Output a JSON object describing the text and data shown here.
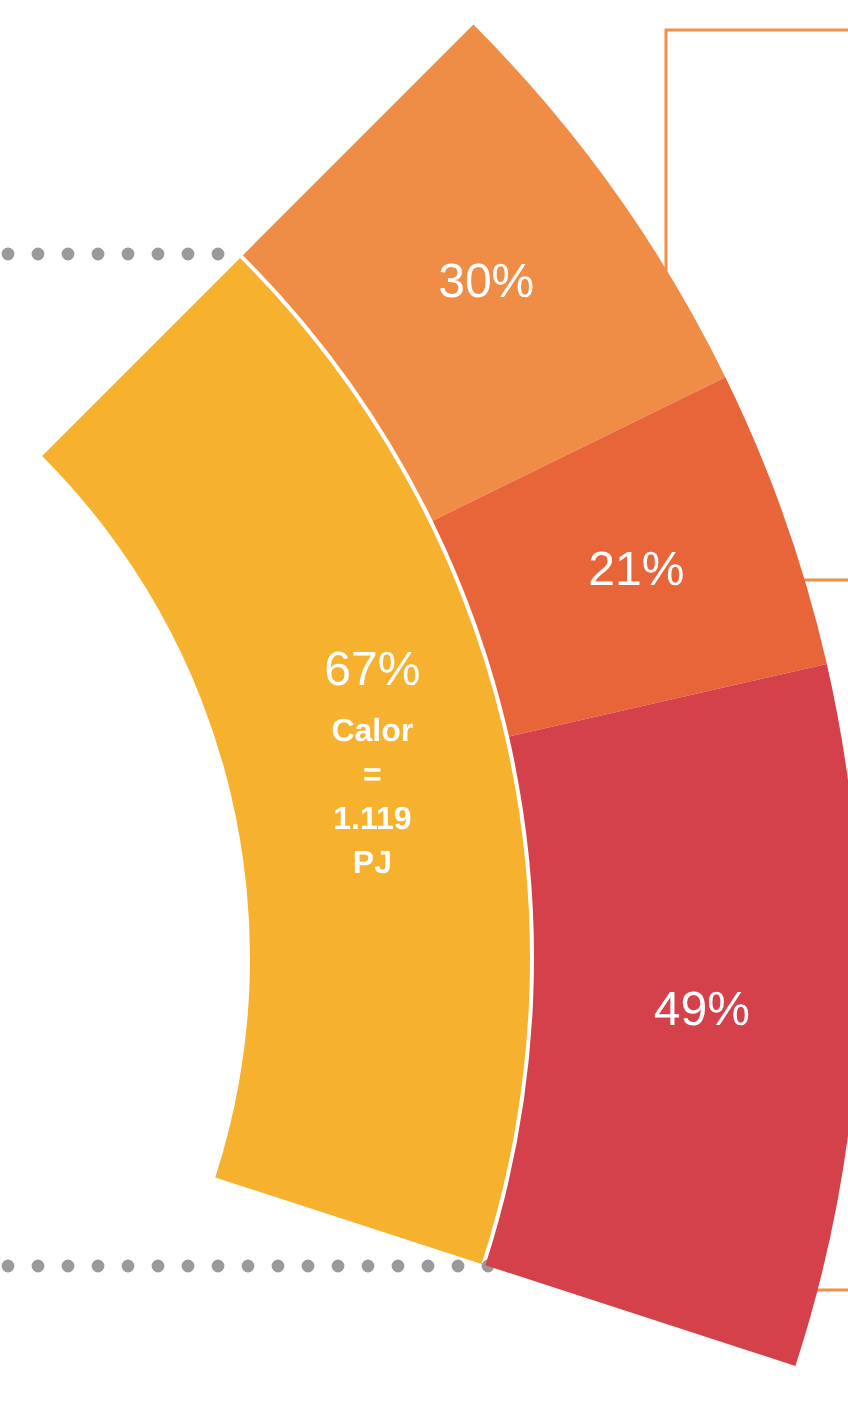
{
  "chart_data": [
    {
      "type": "other",
      "values": [
        67
      ],
      "colors": [
        "#f6b22f"
      ],
      "value_labels": [
        "67%"
      ],
      "annotations": [
        "Calor\n=\n1.119\nPJ"
      ]
    },
    {
      "type": "other",
      "values": [
        30,
        21,
        49
      ],
      "colors": [
        "#ef8c46",
        "#e8653a",
        "#d4414a"
      ],
      "value_labels": [
        "30%",
        "21%",
        "49%"
      ]
    }
  ]
}
